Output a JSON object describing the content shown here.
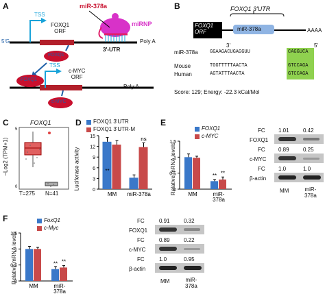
{
  "colors": {
    "blue": "#3a78c9",
    "red": "#c84a4a",
    "mirna": "#e0206a",
    "green": "#8fd14f",
    "darkred": "#b21f2a",
    "mirnp": "#d832c8"
  },
  "panel_a": {
    "label": "A",
    "mir": "miR-378a",
    "mirnp": "miRNP",
    "tss1": "TSS",
    "tss2": "TSS",
    "five": "5'G",
    "foxq1_orf": "FOXQ1\nORF",
    "utr": "3'-UTR",
    "polya1": "Poly A",
    "foxq1_protein": "FOXQ1",
    "cmyc_orf": "c-MYC\nORF",
    "polya2": "Poly A",
    "cmyc_protein": "c-MYC"
  },
  "panel_b": {
    "label": "B",
    "title": "FOXQ1 3'UTR",
    "orf": "FOXQ1\nORF",
    "mir_box": "miR-378a",
    "aaaa": "AAAA",
    "three": "3'",
    "five": "5'",
    "rows": [
      {
        "name": "miR-378a",
        "seq": "GGAAGACUGAGGUU",
        "hl": "CAGGUCA"
      },
      {
        "name": "Mouse",
        "seq": "TGGTTTTTAACTA",
        "hl": "GTCCAGA"
      },
      {
        "name": "Human",
        "seq": "AGTATTTAACTA",
        "hl": "GTCCAGA"
      }
    ],
    "score": "Score: 129; Energy: -22.3 kCal/Mol"
  },
  "panel_c": {
    "label": "C",
    "title": "FOXQ1",
    "ylabel": "–Log2 (TPM+1)",
    "ticks": [
      "0",
      "1",
      "2",
      "3",
      "4",
      "5"
    ],
    "tumor": "T=275",
    "normal": "N=41"
  },
  "panel_d": {
    "label": "D",
    "legend": [
      "FOXQ1 3'UTR",
      "FOXQ1 3'UTR-M"
    ],
    "ylabel": "Luciferase activity",
    "ticks": [
      "0",
      "3",
      "6",
      "9",
      "12",
      "15"
    ],
    "categories": [
      "MM",
      "miR-378a"
    ],
    "annots": [
      "**",
      "ns"
    ]
  },
  "panel_e": {
    "label": "E",
    "legend": [
      "FOXQ1",
      "c-MYC"
    ],
    "ylabel": "Relative mRNA levels",
    "ticks": [
      "0",
      "0.5",
      "1",
      "1.5"
    ],
    "categories": [
      "MM",
      "miR-\n378a"
    ],
    "annots": [
      "**",
      "**"
    ],
    "blot": {
      "rows": [
        {
          "fc": "FC",
          "v1": "1.01",
          "v2": "0.42",
          "name": "FOXQ1"
        },
        {
          "fc": "FC",
          "v1": "0.89",
          "v2": "0.25",
          "name": "c-MYC"
        },
        {
          "fc": "FC",
          "v1": "1.0",
          "v2": "1.0",
          "name": "β-actin"
        }
      ],
      "lanes": [
        "MM",
        "miR-\n378a"
      ]
    }
  },
  "panel_f": {
    "label": "F",
    "legend": [
      "FoxQ1",
      "c-Myc"
    ],
    "ylabel": "Relative mRNA levels",
    "ticks": [
      "0",
      "0.5",
      "1",
      "1.5"
    ],
    "categories": [
      "MM",
      "miR-\n378a"
    ],
    "annots": [
      "**",
      "**"
    ],
    "blot": {
      "rows": [
        {
          "fc": "FC",
          "v1": "0.91",
          "v2": "0.32",
          "name": "FOXQ1"
        },
        {
          "fc": "FC",
          "v1": "0.89",
          "v2": "0.22",
          "name": "c-MYC"
        },
        {
          "fc": "FC",
          "v1": "1.0",
          "v2": "0.95",
          "name": "β-actin"
        }
      ],
      "lanes": [
        "MM",
        "miR-\n378a"
      ]
    }
  },
  "chart_data": [
    {
      "type": "bar",
      "title": "",
      "categories": [
        "MM",
        "miR-378a"
      ],
      "ylim": [
        0,
        15
      ],
      "series": [
        {
          "name": "FOXQ1 3'UTR",
          "values": [
            13.3,
            3.2
          ]
        },
        {
          "name": "FOXQ1 3'UTR-M",
          "values": [
            12.5,
            11.8
          ]
        }
      ]
    },
    {
      "type": "bar",
      "title": "",
      "categories": [
        "MM",
        "miR-378a"
      ],
      "ylim": [
        0,
        1.5
      ],
      "series": [
        {
          "name": "FOXQ1",
          "values": [
            1.0,
            0.25
          ]
        },
        {
          "name": "c-MYC",
          "values": [
            0.98,
            0.3
          ]
        }
      ]
    },
    {
      "type": "bar",
      "title": "",
      "categories": [
        "MM",
        "miR-378a"
      ],
      "ylim": [
        0,
        1.5
      ],
      "series": [
        {
          "name": "FoxQ1",
          "values": [
            1.0,
            0.37
          ]
        },
        {
          "name": "c-Myc",
          "values": [
            1.0,
            0.42
          ]
        }
      ]
    }
  ]
}
